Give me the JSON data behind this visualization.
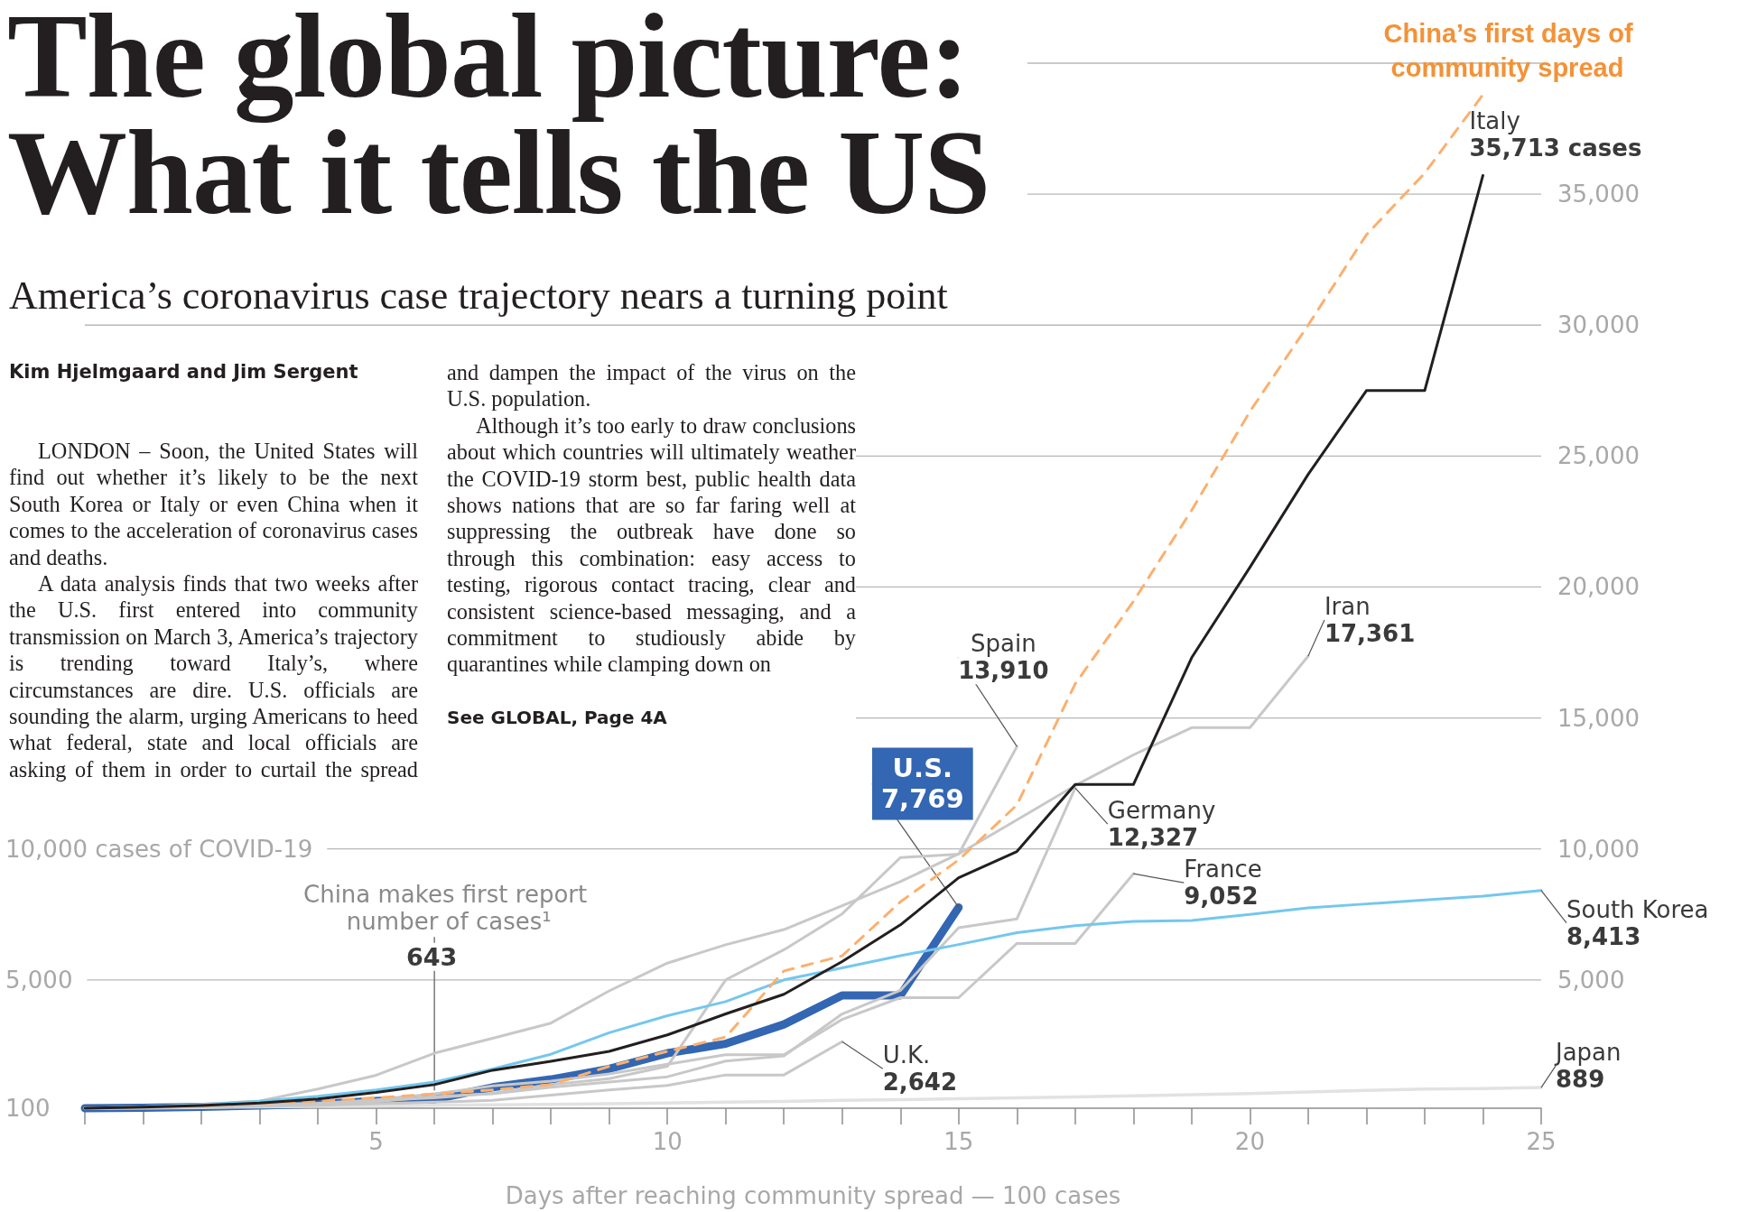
{
  "chart_data": {
    "type": "line",
    "title": "The global picture: What it tells the US",
    "subtitle": "America’s coronavirus case trajectory nears a turning point",
    "xlabel": "Days after reaching community spread — 100 cases",
    "xlim": [
      0,
      25
    ],
    "xticks": [
      5,
      10,
      15,
      20,
      25
    ],
    "ylim": [
      100,
      40000
    ],
    "yticks": [
      100,
      {
        "value": 5000,
        "label": "5,000"
      },
      {
        "value": 10000,
        "label": "10,000 cases of COVID-19"
      }
    ],
    "y2lim": [
      100,
      40000
    ],
    "y2ticks": [
      {
        "value": 5000,
        "label": "5,000"
      },
      {
        "value": 10000,
        "label": "10,000"
      },
      {
        "value": 15000,
        "label": "15,000"
      },
      {
        "value": 20000,
        "label": "20,000"
      },
      {
        "value": 25000,
        "label": "25,000"
      },
      {
        "value": 30000,
        "label": "30,000"
      },
      {
        "value": 35000,
        "label": "35,000"
      },
      {
        "value": 40000,
        "label": null
      }
    ],
    "grid": "y",
    "marker": "none",
    "line_style": "solid",
    "series": [
      {
        "name": "Italy",
        "color": "#231f20",
        "x": [
          0,
          1,
          2,
          3,
          4,
          5,
          6,
          7,
          8,
          9,
          10,
          11,
          12,
          13,
          14,
          15,
          16,
          17,
          18,
          19,
          20,
          21,
          22,
          23,
          24
        ],
        "values": [
          100,
          140,
          200,
          300,
          450,
          700,
          1000,
          1550,
          1890,
          2270,
          2900,
          3700,
          4450,
          5700,
          7100,
          8900,
          9900,
          12460,
          12460,
          17300,
          20750,
          24300,
          27500,
          27500,
          35713
        ],
        "value_labels": [
          null,
          null,
          null,
          null,
          null,
          null,
          null,
          null,
          null,
          null,
          null,
          null,
          null,
          null,
          null,
          null,
          null,
          null,
          null,
          null,
          null,
          null,
          null,
          null,
          "35,713 cases"
        ]
      },
      {
        "name": "China’s first days of community spread",
        "color": "#fbb06e",
        "line_style": "dashed",
        "x": [
          0,
          1,
          2,
          3,
          4,
          5,
          6,
          7,
          8,
          9,
          10,
          11,
          12,
          13,
          14,
          15,
          16,
          17,
          18,
          19,
          20,
          21,
          22,
          23,
          24
        ],
        "values": [
          100,
          140,
          200,
          280,
          380,
          500,
          643,
          800,
          1000,
          1700,
          2270,
          2816,
          5340,
          5920,
          7980,
          9580,
          11680,
          16300,
          19450,
          22930,
          26700,
          30000,
          33450,
          35800,
          38800
        ],
        "value_labels": [
          null,
          null,
          null,
          null,
          null,
          null,
          "643",
          null,
          null,
          null,
          null,
          null,
          null,
          null,
          null,
          null,
          null,
          null,
          null,
          null,
          null,
          null,
          null,
          null,
          null
        ]
      },
      {
        "name": "Spain",
        "color": "#c8c8c8",
        "x": [
          0,
          1,
          2,
          3,
          4,
          5,
          6,
          7,
          8,
          9,
          10,
          11,
          12,
          13,
          14,
          15,
          16
        ],
        "values": [
          100,
          120,
          165,
          230,
          290,
          400,
          500,
          670,
          1000,
          1230,
          1700,
          5000,
          6150,
          7520,
          9670,
          9800,
          13910
        ],
        "value_labels": [
          null,
          null,
          null,
          null,
          null,
          null,
          null,
          null,
          null,
          null,
          null,
          null,
          null,
          null,
          null,
          null,
          "13,910"
        ]
      },
      {
        "name": "Iran",
        "color": "#c8c8c8",
        "x": [
          0,
          1,
          2,
          3,
          4,
          5,
          6,
          7,
          8,
          9,
          10,
          11,
          12,
          13,
          14,
          15,
          16,
          17,
          18,
          19,
          20,
          21
        ],
        "values": [
          100,
          150,
          250,
          380,
          830,
          1360,
          2200,
          2770,
          3350,
          4580,
          5640,
          6340,
          6920,
          7830,
          8750,
          9810,
          11110,
          12420,
          13590,
          14630,
          14630,
          17361
        ],
        "value_labels": [
          null,
          null,
          null,
          null,
          null,
          null,
          null,
          null,
          null,
          null,
          null,
          null,
          null,
          null,
          null,
          null,
          null,
          null,
          null,
          null,
          null,
          "17,361"
        ]
      },
      {
        "name": "Germany",
        "color": "#c8c8c8",
        "x": [
          0,
          1,
          2,
          3,
          4,
          5,
          6,
          7,
          8,
          9,
          10,
          11,
          12,
          13,
          14,
          15,
          16,
          17
        ],
        "values": [
          100,
          130,
          160,
          200,
          260,
          350,
          550,
          650,
          900,
          1100,
          1300,
          1900,
          2100,
          3700,
          4600,
          6990,
          7330,
          12327
        ],
        "value_labels": [
          null,
          null,
          null,
          null,
          null,
          null,
          null,
          null,
          null,
          null,
          null,
          null,
          null,
          null,
          null,
          null,
          null,
          "12,327"
        ]
      },
      {
        "name": "France",
        "color": "#c8c8c8",
        "x": [
          0,
          1,
          2,
          3,
          4,
          5,
          6,
          7,
          8,
          9,
          10,
          11,
          12,
          13,
          14,
          15,
          16,
          17,
          18
        ],
        "values": [
          100,
          130,
          190,
          210,
          280,
          420,
          650,
          950,
          1130,
          1410,
          1780,
          2140,
          2140,
          3490,
          4320,
          4320,
          6390,
          6390,
          9052
        ],
        "value_labels": [
          null,
          null,
          null,
          null,
          null,
          null,
          null,
          null,
          null,
          null,
          null,
          null,
          null,
          null,
          null,
          null,
          null,
          null,
          "9,052"
        ]
      },
      {
        "name": "U.K.",
        "color": "#c8c8c8",
        "x": [
          0,
          1,
          2,
          3,
          4,
          5,
          6,
          7,
          8,
          9,
          10,
          11,
          12,
          13
        ],
        "values": [
          100,
          115,
          140,
          170,
          210,
          270,
          330,
          400,
          600,
          800,
          970,
          1370,
          1370,
          2642
        ],
        "value_labels": [
          null,
          null,
          null,
          null,
          null,
          null,
          null,
          null,
          null,
          null,
          null,
          null,
          null,
          "2,642"
        ]
      },
      {
        "name": "South Korea",
        "color": "#74c7ee",
        "x": [
          0,
          1,
          2,
          3,
          4,
          5,
          6,
          7,
          8,
          9,
          10,
          11,
          12,
          13,
          14,
          15,
          16,
          17,
          18,
          19,
          20,
          21,
          22,
          23,
          24,
          25
        ],
        "values": [
          100,
          150,
          230,
          370,
          560,
          800,
          1100,
          1600,
          2160,
          2980,
          3630,
          4170,
          5000,
          5460,
          5920,
          6350,
          6800,
          7070,
          7230,
          7270,
          7500,
          7750,
          7900,
          8050,
          8200,
          8413
        ],
        "value_labels": [
          null,
          null,
          null,
          null,
          null,
          null,
          null,
          null,
          null,
          null,
          null,
          null,
          null,
          null,
          null,
          null,
          null,
          null,
          null,
          null,
          null,
          null,
          null,
          null,
          null,
          "8,413"
        ]
      },
      {
        "name": "Japan",
        "color": "#e2e2e2",
        "x": [
          0,
          1,
          2,
          3,
          4,
          5,
          6,
          7,
          8,
          9,
          10,
          11,
          12,
          13,
          14,
          15,
          16,
          17,
          18,
          19,
          20,
          21,
          22,
          23,
          24,
          25
        ],
        "values": [
          100,
          110,
          130,
          150,
          170,
          190,
          210,
          230,
          250,
          270,
          300,
          330,
          360,
          400,
          430,
          460,
          500,
          530,
          570,
          620,
          660,
          720,
          780,
          830,
          850,
          889
        ],
        "value_labels": [
          null,
          null,
          null,
          null,
          null,
          null,
          null,
          null,
          null,
          null,
          null,
          null,
          null,
          null,
          null,
          null,
          null,
          null,
          null,
          null,
          null,
          null,
          null,
          null,
          null,
          "889"
        ]
      },
      {
        "name": "U.S.",
        "color": "#3366b3",
        "x": [
          0,
          1,
          2,
          3,
          4,
          5,
          6,
          7,
          8,
          9,
          10,
          11,
          12,
          13,
          14,
          15
        ],
        "values": [
          100,
          120,
          150,
          200,
          260,
          380,
          440,
          900,
          1200,
          1600,
          2200,
          2560,
          3300,
          4410,
          4410,
          7769
        ],
        "value_labels": [
          null,
          null,
          null,
          null,
          null,
          null,
          null,
          null,
          null,
          null,
          null,
          null,
          null,
          null,
          null,
          "7,769"
        ]
      }
    ],
    "annotations": [
      "Kim Hjelmgaard and Jim Sergent",
      "LONDON – Soon, the United States will find out whether it’s likely to be the next South Korea or Italy or even China when it comes to the acceleration of coronavirus cases and deaths.",
      "A data analysis finds that two weeks after the U.S. first entered into community transmission on March 3, America’s trajectory is trending toward Italy’s, where circumstances are dire. U.S. officials are sounding the alarm, urging Americans to heed what federal, state and local officials are asking of them in order to curtail the spread and dampen the impact of the virus on the U.S. population.",
      "Although it’s too early to draw conclusions about which countries will ultimately weather the COVID-19 storm best, public health data shows nations that are so far faring well at suppressing the outbreak have done so through this combination: easy access to testing, rigorous contact tracing, clear and consistent science-based messaging, and a commitment to studiously abide by quarantines while clamping down on",
      "See GLOBAL, Page 4A",
      {
        "text": "China makes first report number of cases¹",
        "x": 6,
        "y": 643
      }
    ]
  }
}
